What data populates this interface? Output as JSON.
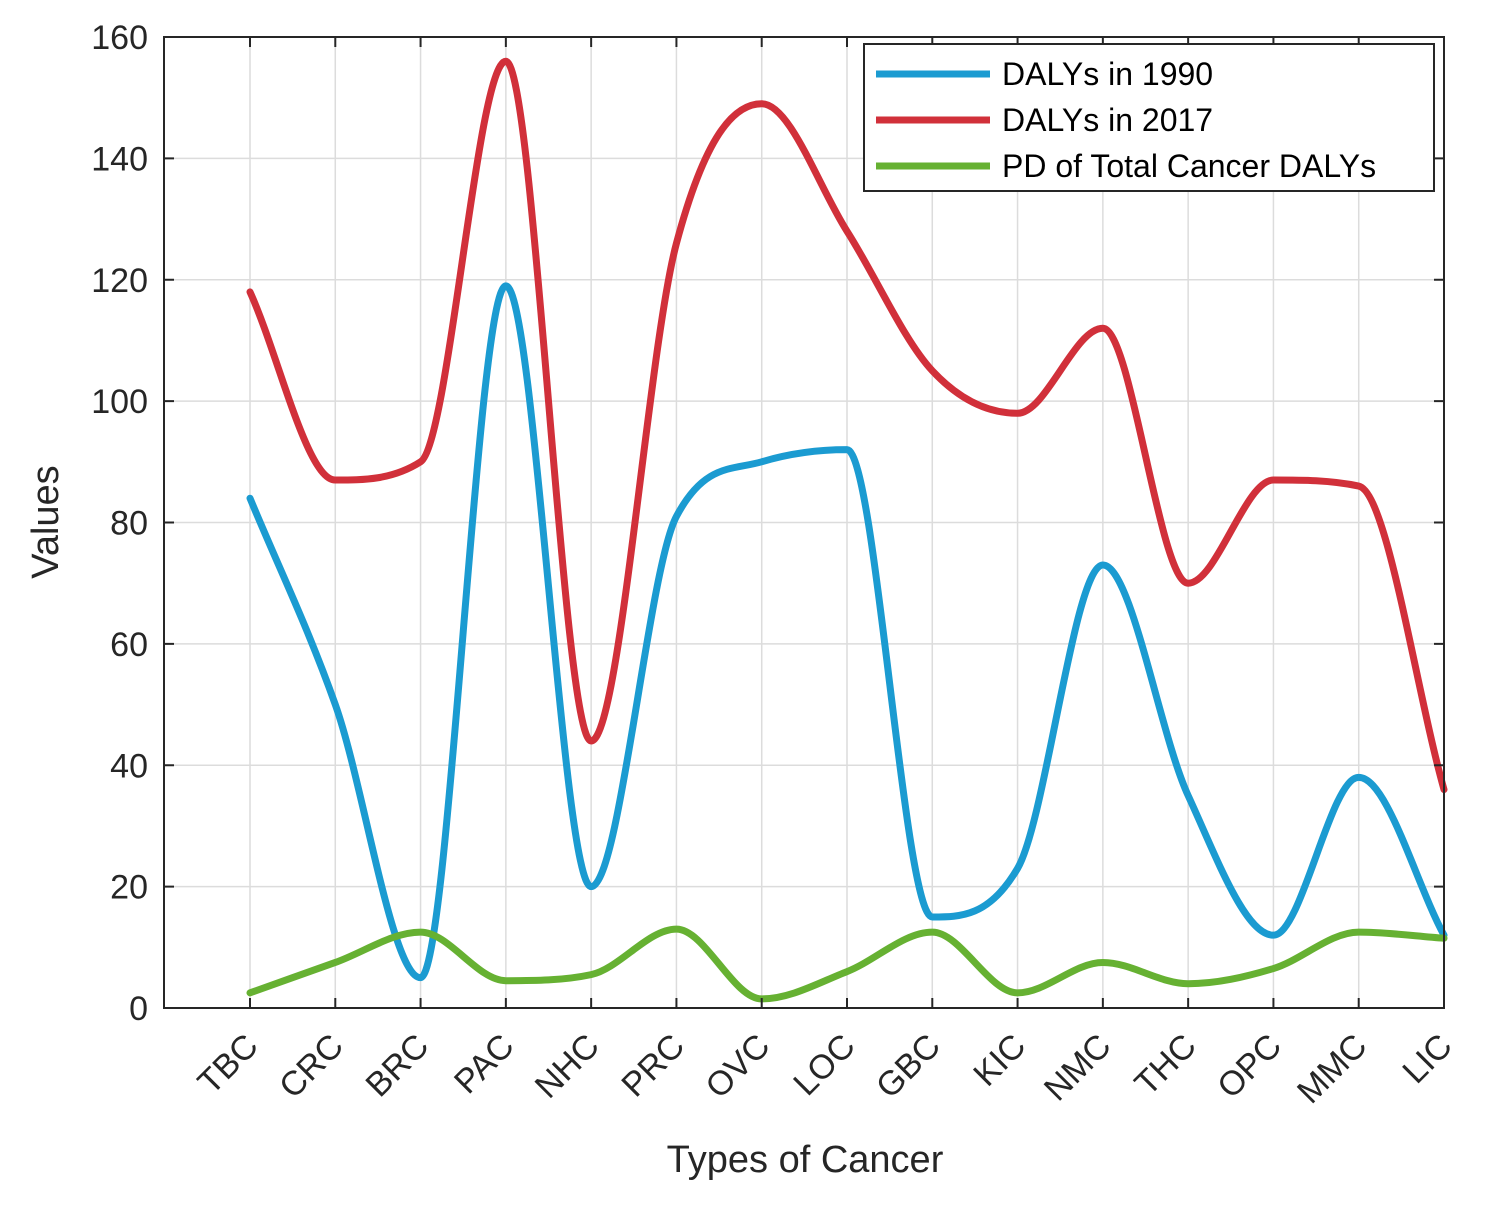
{
  "chart_data": {
    "type": "line",
    "xlabel": "Types of Cancer",
    "ylabel": "Values",
    "ylim": [
      0,
      160
    ],
    "yticks": [
      0,
      20,
      40,
      60,
      80,
      100,
      120,
      140,
      160
    ],
    "grid": true,
    "legend_position": "top-right",
    "categories": [
      "TBC",
      "CRC",
      "BRC",
      "PAC",
      "NHC",
      "PRC",
      "OVC",
      "LOC",
      "GBC",
      "KIC",
      "NMC",
      "THC",
      "OPC",
      "MMC",
      "LIC"
    ],
    "series": [
      {
        "name": "DALYs in 1990",
        "color": "#1b9bd1",
        "values": [
          84,
          50,
          5,
          119,
          20,
          81,
          90,
          92,
          15,
          23,
          73,
          35,
          12,
          38,
          12
        ]
      },
      {
        "name": "DALYs in 2017",
        "color": "#d1303a",
        "values": [
          118,
          87,
          90,
          156,
          44,
          126,
          149,
          128,
          105,
          98,
          112,
          70,
          87,
          86,
          36
        ]
      },
      {
        "name": "PD of Total Cancer DALYs",
        "color": "#66b132",
        "values": [
          2.5,
          7.5,
          12.5,
          4.5,
          5.5,
          13,
          1.5,
          6,
          12.5,
          2.5,
          7.5,
          4,
          6.5,
          12.5,
          11.5
        ]
      }
    ]
  }
}
